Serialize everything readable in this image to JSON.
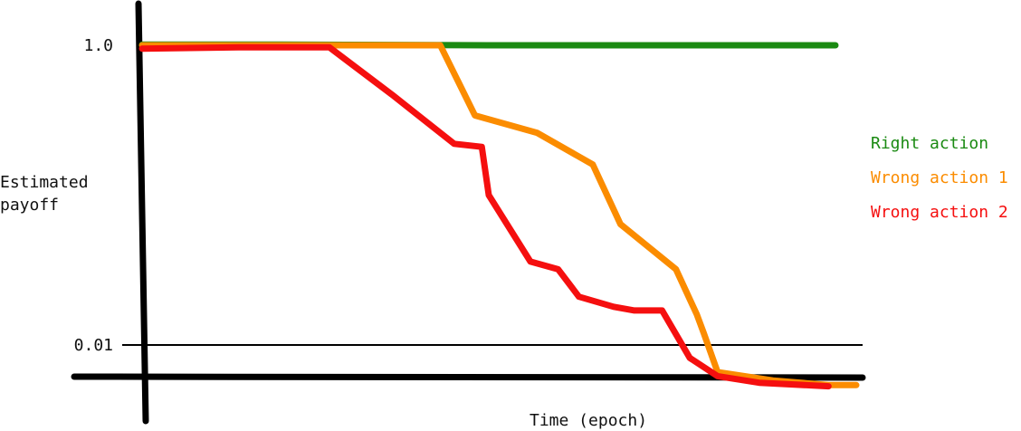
{
  "chart_data": {
    "type": "line",
    "title": "",
    "xlabel": "Time (epoch)",
    "ylabel": "Estimated payoff",
    "ylabel_lines": [
      "Estimated",
      "payoff"
    ],
    "y_scale": "log",
    "ylim": [
      0.005,
      1.5
    ],
    "xlim": [
      0,
      100
    ],
    "x_ticks": [],
    "y_ticks": [
      {
        "value": 1.0,
        "label": "1.0"
      },
      {
        "value": 0.01,
        "label": "0.01"
      }
    ],
    "reference_lines": [
      {
        "axis": "y",
        "value": 0.01
      }
    ],
    "grid": false,
    "legend_position": "right",
    "series": [
      {
        "name": "Right action",
        "color": "#1a8a12",
        "x": [
          0,
          20,
          50,
          100
        ],
        "y": [
          1.01,
          1.01,
          1.0,
          1.0
        ]
      },
      {
        "name": "Wrong action 1",
        "color": "#fb8c00",
        "x": [
          0,
          15,
          43,
          48,
          57,
          65,
          69,
          77,
          80,
          81,
          83,
          91,
          99,
          103
        ],
        "y": [
          1.0,
          1.0,
          1.0,
          0.34,
          0.26,
          0.16,
          0.064,
          0.032,
          0.016,
          0.012,
          0.0066,
          0.0058,
          0.0054,
          0.0054
        ]
      },
      {
        "name": "Wrong action 2",
        "color": "#f50f0f",
        "x": [
          0,
          14,
          27,
          36,
          45,
          49,
          50,
          56,
          60,
          63,
          68,
          71,
          75,
          79,
          83,
          89,
          99
        ],
        "y": [
          0.95,
          0.97,
          0.97,
          0.47,
          0.22,
          0.21,
          0.1,
          0.036,
          0.032,
          0.021,
          0.018,
          0.017,
          0.017,
          0.0082,
          0.0062,
          0.0056,
          0.0053
        ]
      }
    ]
  }
}
